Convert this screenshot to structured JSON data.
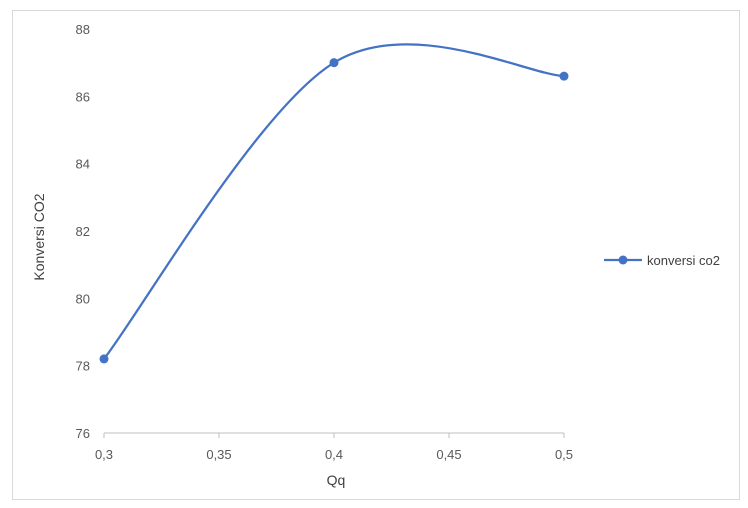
{
  "chart_data": {
    "type": "line",
    "title": "",
    "xlabel": "Qq",
    "ylabel": "Konversi CO2",
    "x": [
      0.3,
      0.4,
      0.5
    ],
    "x_ticks": [
      "0,3",
      "0,35",
      "0,4",
      "0,45",
      "0,5"
    ],
    "x_tick_values": [
      0.3,
      0.35,
      0.4,
      0.45,
      0.5
    ],
    "xlim": [
      0.3,
      0.5
    ],
    "y_ticks": [
      "76",
      "78",
      "80",
      "82",
      "84",
      "86",
      "88"
    ],
    "y_tick_values": [
      76,
      78,
      80,
      82,
      84,
      86,
      88
    ],
    "ylim": [
      76,
      88
    ],
    "smooth": true,
    "grid": false,
    "legend_position": "right",
    "series": [
      {
        "name": "konversi co2",
        "values": [
          78.2,
          87.0,
          86.6
        ],
        "color": "#4472c4"
      }
    ]
  }
}
